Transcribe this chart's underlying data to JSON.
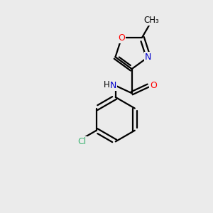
{
  "background_color": "#ebebeb",
  "bond_color": "#000000",
  "atom_colors": {
    "O": "#ff0000",
    "N": "#0000cd",
    "C": "#000000",
    "Cl": "#3cb371",
    "H": "#000000"
  },
  "figsize": [
    3.0,
    3.0
  ],
  "dpi": 100
}
